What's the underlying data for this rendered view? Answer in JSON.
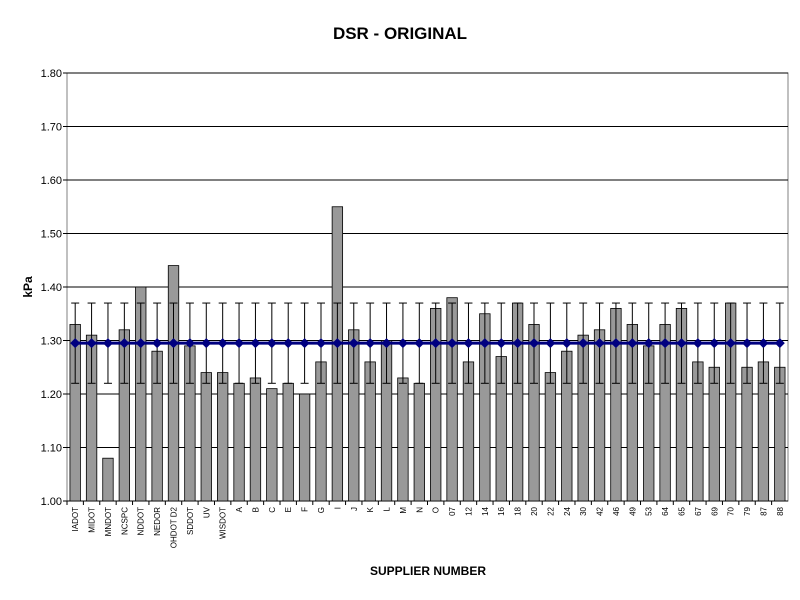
{
  "chart_data": {
    "type": "bar",
    "title": "DSR - ORIGINAL",
    "x_label": "SUPPLIER NUMBER",
    "y_label": "kPa",
    "categories": [
      "IADOT",
      "MIDOT",
      "MNDOT",
      "NCSPC",
      "NDDOT",
      "NEDOR",
      "OHDOT D2",
      "SDDOT",
      "UV",
      "WISDOT",
      "A",
      "B",
      "C",
      "E",
      "F",
      "G",
      "I",
      "J",
      "K",
      "L",
      "M",
      "N",
      "O",
      "07",
      "12",
      "14",
      "16",
      "18",
      "20",
      "22",
      "24",
      "30",
      "42",
      "46",
      "49",
      "53",
      "64",
      "65",
      "67",
      "69",
      "70",
      "79",
      "87",
      "88"
    ],
    "values": [
      1.33,
      1.31,
      1.08,
      1.32,
      1.4,
      1.28,
      1.44,
      1.29,
      1.24,
      1.24,
      1.22,
      1.23,
      1.21,
      1.22,
      1.2,
      1.26,
      1.55,
      1.32,
      1.26,
      1.3,
      1.23,
      1.22,
      1.36,
      1.38,
      1.26,
      1.35,
      1.27,
      1.37,
      1.33,
      1.24,
      1.28,
      1.31,
      1.32,
      1.36,
      1.33,
      1.29,
      1.33,
      1.36,
      1.26,
      1.25,
      1.37,
      1.25,
      1.26,
      1.25
    ],
    "color": "#999999",
    "line": {
      "color": "#000080",
      "values": [
        1.295,
        1.295,
        1.295,
        1.295,
        1.295,
        1.295,
        1.295,
        1.295,
        1.295,
        1.295,
        1.295,
        1.295,
        1.295,
        1.295,
        1.295,
        1.295,
        1.295,
        1.295,
        1.295,
        1.295,
        1.295,
        1.295,
        1.295,
        1.295,
        1.295,
        1.295,
        1.295,
        1.295,
        1.295,
        1.295,
        1.295,
        1.295,
        1.295,
        1.295,
        1.295,
        1.295,
        1.295,
        1.295,
        1.295,
        1.295,
        1.295,
        1.295,
        1.295,
        1.295
      ],
      "errors": [
        0.075,
        0.075,
        0.075,
        0.075,
        0.075,
        0.075,
        0.075,
        0.075,
        0.075,
        0.075,
        0.075,
        0.075,
        0.075,
        0.075,
        0.075,
        0.075,
        0.075,
        0.075,
        0.075,
        0.075,
        0.075,
        0.075,
        0.075,
        0.075,
        0.075,
        0.075,
        0.075,
        0.075,
        0.075,
        0.075,
        0.075,
        0.075,
        0.075,
        0.075,
        0.075,
        0.075,
        0.075,
        0.075,
        0.075,
        0.075,
        0.075,
        0.075,
        0.075,
        0.075
      ]
    },
    "ylim": [
      1.0,
      1.8
    ],
    "yticks": [
      {
        "value": 1.0,
        "label": "1.00"
      },
      {
        "value": 1.1,
        "label": "1.10"
      },
      {
        "value": 1.2,
        "label": "1.20"
      },
      {
        "value": 1.3,
        "label": "1.30"
      },
      {
        "value": 1.4,
        "label": "1.40"
      },
      {
        "value": 1.5,
        "label": "1.50"
      },
      {
        "value": 1.6,
        "label": "1.60"
      },
      {
        "value": 1.7,
        "label": "1.70"
      },
      {
        "value": 1.8,
        "label": "1.80"
      }
    ],
    "grid": true
  }
}
